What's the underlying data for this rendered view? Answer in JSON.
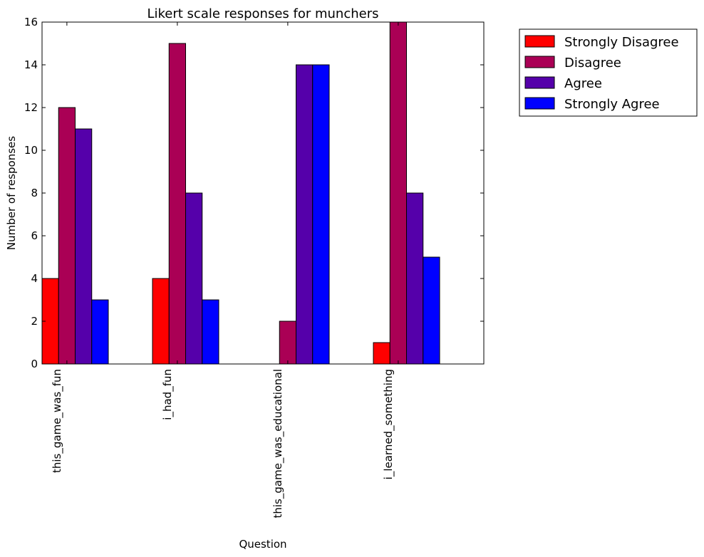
{
  "chart_data": {
    "type": "bar",
    "title": "Likert scale responses for munchers",
    "xlabel": "Question",
    "ylabel": "Number of responses",
    "ylim": [
      0,
      16
    ],
    "yticks": [
      "0",
      "2",
      "4",
      "6",
      "8",
      "10",
      "12",
      "14",
      "16"
    ],
    "categories": [
      "this_game_was_fun",
      "i_had_fun",
      "this_game_was_educational",
      "i_learned_something"
    ],
    "series": [
      {
        "name": "Strongly Disagree",
        "color": "#ff0000",
        "values": [
          4,
          4,
          0,
          1
        ]
      },
      {
        "name": "Disagree",
        "color": "#aa0055",
        "values": [
          12,
          15,
          2,
          16
        ]
      },
      {
        "name": "Agree",
        "color": "#5500aa",
        "values": [
          11,
          8,
          14,
          8
        ]
      },
      {
        "name": "Strongly Agree",
        "color": "#0000ff",
        "values": [
          3,
          3,
          14,
          5
        ]
      }
    ],
    "grid": false,
    "legend_position": "outside-top-right"
  }
}
